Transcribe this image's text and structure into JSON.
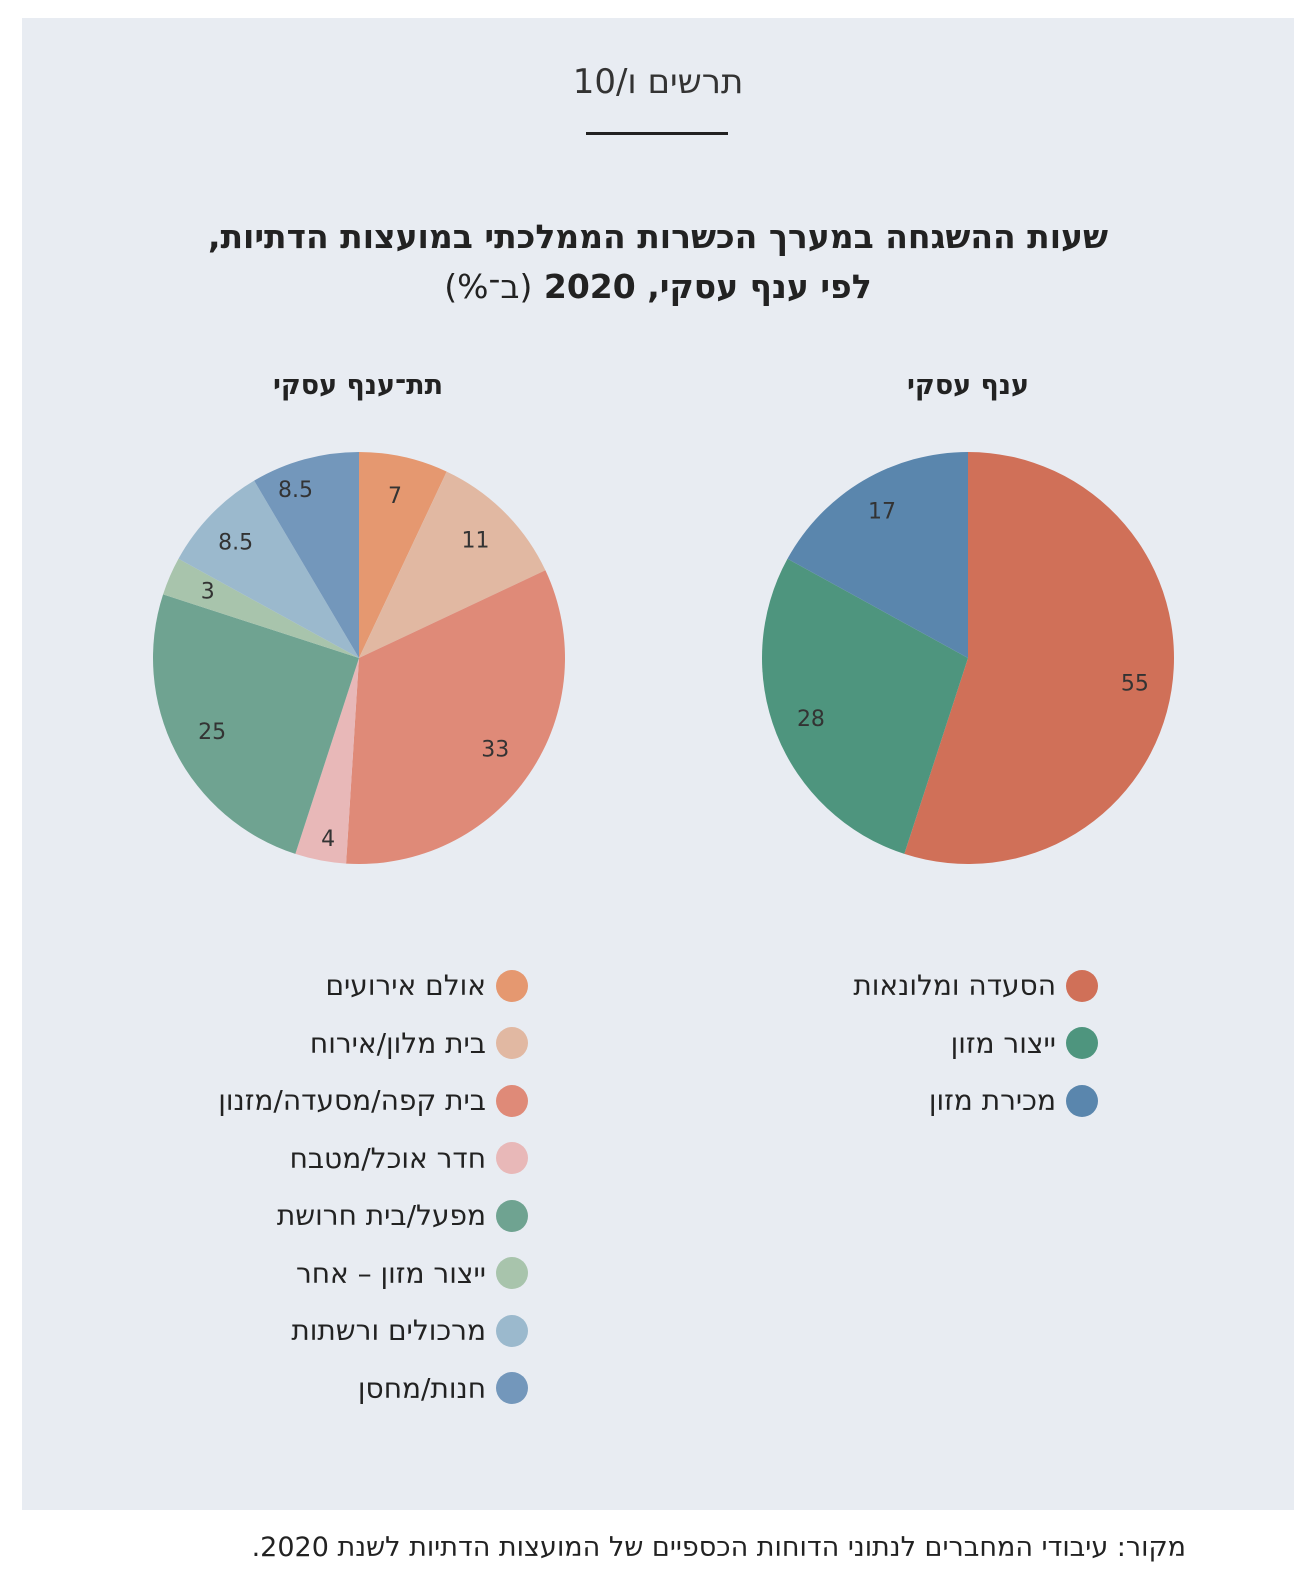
{
  "figure_label": "תרשים ו/10",
  "title_line1": "שעות ההשגחה במערך הכשרות הממלכתי במועצות הדתיות,",
  "title_line2": "לפי ענף עסקי, 2020",
  "title_unit": "(ב־%)",
  "source": "מקור: עיבודי המחברים לנתוני הדוחות הכספיים של המועצות הדתיות לשנת 2020.",
  "chart_data": [
    {
      "type": "pie",
      "title": "ענף עסקי",
      "start": "top",
      "direction": "clockwise",
      "slices": [
        {
          "label": "הסעדה ומלונאות",
          "value": 55,
          "color": "#d07058"
        },
        {
          "label": "ייצור מזון",
          "value": 28,
          "color": "#4e957e"
        },
        {
          "label": "מכירת מזון",
          "value": 17,
          "color": "#5a86ad"
        }
      ]
    },
    {
      "type": "pie",
      "title": "תת־ענף עסקי",
      "start": "top",
      "direction": "clockwise",
      "slices": [
        {
          "label": "אולם אירועים",
          "value": 7,
          "value_label": "7",
          "color": "#e59870"
        },
        {
          "label": "בית מלון/אירוח",
          "value": 11,
          "value_label": "11",
          "color": "#e1b8a2"
        },
        {
          "label": "בית קפה/מסעדה/מזנון",
          "value": 33,
          "value_label": "33",
          "color": "#df8a78"
        },
        {
          "label": "חדר אוכל/מטבח",
          "value": 4,
          "value_label": "4",
          "color": "#e8b8b8"
        },
        {
          "label": "מפעל/בית חרושת",
          "value": 25,
          "value_label": "25",
          "color": "#6fa391"
        },
        {
          "label": "ייצור מזון – אחר",
          "value": 3,
          "value_label": "3",
          "color": "#a8c4ac"
        },
        {
          "label": "מרכולים ורשתות",
          "value": 8.5,
          "value_label": "8.5",
          "color": "#9bb9cd"
        },
        {
          "label": "חנות/מחסן",
          "value": 8.5,
          "value_label": "8.5",
          "color": "#7397bb"
        }
      ]
    }
  ]
}
